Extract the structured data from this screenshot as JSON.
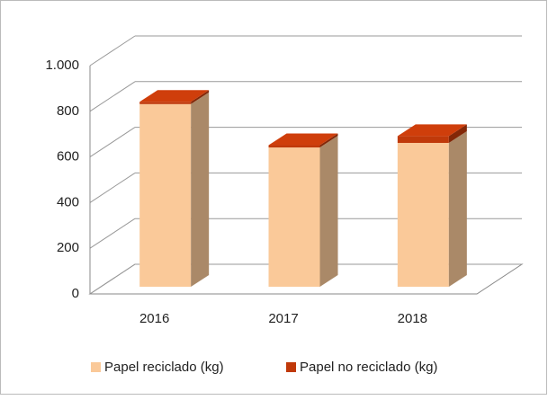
{
  "chart_data": {
    "type": "bar3d_stacked",
    "categories": [
      "2016",
      "2017",
      "2018"
    ],
    "series": [
      {
        "name": "Papel reciclado (kg)",
        "color": "#fac999",
        "values": [
          800,
          610,
          630
        ]
      },
      {
        "name": "Papel no reciclado (kg)",
        "color": "#c0390a",
        "values": [
          10,
          10,
          30
        ]
      }
    ],
    "ylim": [
      0,
      1000
    ],
    "yticks": [
      0,
      200,
      400,
      600,
      800,
      {
        "value": 1000,
        "label": "1.000"
      }
    ],
    "grid": true,
    "legend": "bottom"
  }
}
